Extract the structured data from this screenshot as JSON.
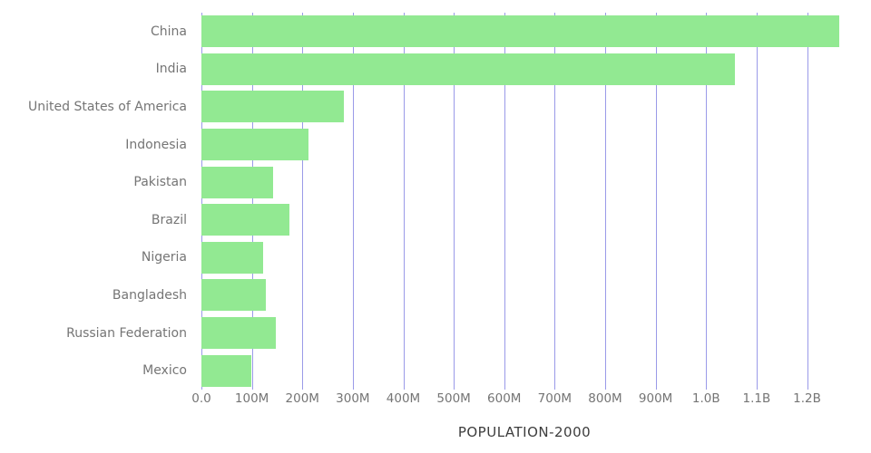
{
  "chart_data": {
    "type": "bar",
    "orientation": "horizontal",
    "title": "POPULATION-2000",
    "categories": [
      "China",
      "India",
      "United States of America",
      "Indonesia",
      "Pakistan",
      "Brazil",
      "Nigeria",
      "Bangladesh",
      "Russian Federation",
      "Mexico"
    ],
    "series": [
      {
        "name": "Population 2000",
        "values_millions": [
          1263,
          1057,
          282,
          212,
          142,
          175,
          122,
          128,
          147,
          99
        ]
      }
    ],
    "x_ticks": [
      {
        "value_millions": 0,
        "label": "0.0"
      },
      {
        "value_millions": 100,
        "label": "100M"
      },
      {
        "value_millions": 200,
        "label": "200M"
      },
      {
        "value_millions": 300,
        "label": "300M"
      },
      {
        "value_millions": 400,
        "label": "400M"
      },
      {
        "value_millions": 500,
        "label": "500M"
      },
      {
        "value_millions": 600,
        "label": "600M"
      },
      {
        "value_millions": 700,
        "label": "700M"
      },
      {
        "value_millions": 800,
        "label": "800M"
      },
      {
        "value_millions": 900,
        "label": "900M"
      },
      {
        "value_millions": 1000,
        "label": "1.0B"
      },
      {
        "value_millions": 1100,
        "label": "1.1B"
      },
      {
        "value_millions": 1200,
        "label": "1.2B"
      }
    ],
    "xlim_millions": [
      0,
      1280
    ],
    "xlabel": "",
    "ylabel": "",
    "grid": true,
    "legend": false
  },
  "style": {
    "bar_color": "#92e992",
    "grid_color": "#9a9ae8",
    "label_color": "#757575",
    "title_color": "#3d3d3d",
    "background": "#ffffff"
  }
}
